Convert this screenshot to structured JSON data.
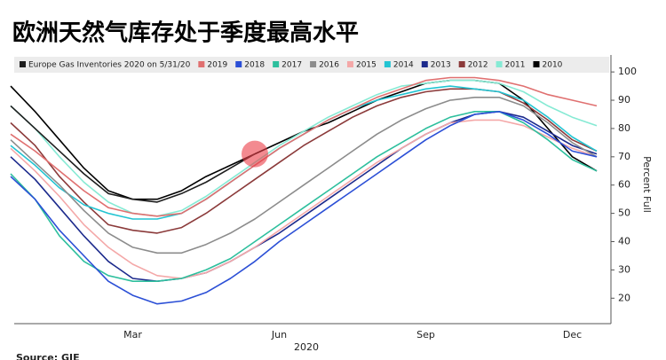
{
  "chart_data": {
    "type": "line",
    "title": "欧洲天然气库存处于季度最高水平",
    "xlabel": "2020",
    "ylabel": "Percent Full",
    "source": "Source: GIE",
    "categories": [
      null,
      null,
      null,
      null,
      null,
      "Mar",
      null,
      null,
      null,
      null,
      null,
      "Jun",
      null,
      null,
      null,
      null,
      null,
      "Sep",
      null,
      null,
      null,
      null,
      null,
      "Dec",
      null
    ],
    "ylim": [
      11,
      106
    ],
    "yticks": [
      20,
      30,
      40,
      50,
      60,
      70,
      80,
      90,
      100
    ],
    "series": [
      {
        "name": "2010",
        "color": "#000000",
        "values": [
          95,
          86,
          76,
          66,
          58,
          55,
          55,
          58,
          63,
          67,
          71,
          75,
          79,
          82,
          86,
          90,
          93,
          96,
          97,
          97,
          96,
          90,
          80,
          70,
          65
        ]
      },
      {
        "name": "2011",
        "color": "#86ead4",
        "values": [
          88,
          80,
          70,
          61,
          54,
          50,
          49,
          51,
          56,
          62,
          68,
          74,
          79,
          84,
          88,
          92,
          95,
          96,
          97,
          97,
          96,
          93,
          88,
          84,
          81
        ]
      },
      {
        "name": "2012",
        "color": "#8b3a3a",
        "values": [
          82,
          74,
          63,
          54,
          46,
          44,
          43,
          45,
          50,
          56,
          62,
          68,
          74,
          79,
          84,
          88,
          91,
          93,
          94,
          94,
          93,
          89,
          83,
          76,
          72
        ]
      },
      {
        "name": "2013",
        "color": "#1c2a8c",
        "values": [
          70,
          62,
          52,
          42,
          33,
          27,
          26,
          27,
          29,
          33,
          38,
          43,
          49,
          55,
          61,
          67,
          73,
          78,
          82,
          85,
          86,
          84,
          79,
          74,
          71
        ]
      },
      {
        "name": "2014",
        "color": "#22c4d2",
        "values": [
          74,
          67,
          59,
          53,
          50,
          48,
          48,
          50,
          55,
          61,
          67,
          73,
          78,
          83,
          87,
          90,
          92,
          94,
          95,
          94,
          93,
          90,
          84,
          77,
          72
        ]
      },
      {
        "name": "2015",
        "color": "#f4a8a8",
        "values": [
          73,
          65,
          56,
          46,
          38,
          32,
          28,
          27,
          29,
          33,
          38,
          44,
          50,
          56,
          62,
          68,
          73,
          78,
          82,
          83,
          83,
          81,
          77,
          73,
          70
        ]
      },
      {
        "name": "2016",
        "color": "#8c8c8c",
        "values": [
          76,
          68,
          60,
          51,
          43,
          38,
          36,
          36,
          39,
          43,
          48,
          54,
          60,
          66,
          72,
          78,
          83,
          87,
          90,
          91,
          91,
          88,
          82,
          75,
          70
        ]
      },
      {
        "name": "2017",
        "color": "#2dbf9d",
        "values": [
          64,
          55,
          42,
          33,
          28,
          26,
          26,
          27,
          30,
          34,
          40,
          46,
          52,
          58,
          64,
          70,
          75,
          80,
          84,
          86,
          86,
          82,
          76,
          69,
          65
        ]
      },
      {
        "name": "2018",
        "color": "#2b4fd6",
        "values": [
          63,
          55,
          44,
          35,
          26,
          21,
          18,
          19,
          22,
          27,
          33,
          40,
          46,
          52,
          58,
          64,
          70,
          76,
          81,
          85,
          86,
          83,
          78,
          72,
          70
        ]
      },
      {
        "name": "2019",
        "color": "#e07070",
        "values": [
          78,
          72,
          65,
          58,
          52,
          50,
          49,
          50,
          55,
          61,
          67,
          73,
          78,
          83,
          87,
          91,
          94,
          97,
          98,
          98,
          97,
          95,
          92,
          90,
          88
        ]
      },
      {
        "name": "Europe Gas Inventories 2020 on 5/31/20",
        "color": "#1e1e1e",
        "values": [
          88,
          80,
          72,
          64,
          57,
          55,
          54,
          57,
          61,
          66,
          71,
          null,
          null,
          null,
          null,
          null,
          null,
          null,
          null,
          null,
          null,
          null,
          null,
          null,
          null
        ]
      }
    ],
    "legend_order": [
      10,
      9,
      8,
      7,
      6,
      5,
      4,
      3,
      2,
      1,
      0
    ]
  }
}
